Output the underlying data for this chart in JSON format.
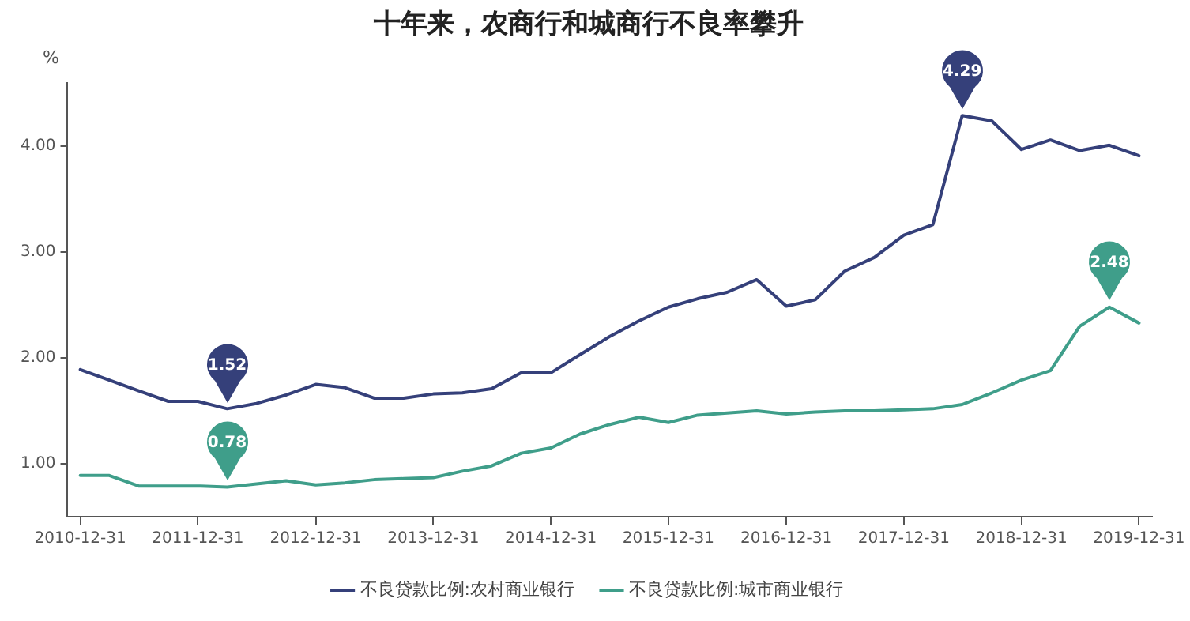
{
  "chart_data": {
    "type": "line",
    "title": "十年来，农商行和城商行不良率攀升",
    "ylabel": "%",
    "x": [
      "2010-12-31",
      "2011-03-31",
      "2011-06-30",
      "2011-09-30",
      "2011-12-31",
      "2012-03-31",
      "2012-06-30",
      "2012-09-30",
      "2012-12-31",
      "2013-03-31",
      "2013-06-30",
      "2013-09-30",
      "2013-12-31",
      "2014-03-31",
      "2014-06-30",
      "2014-09-30",
      "2014-12-31",
      "2015-03-31",
      "2015-06-30",
      "2015-09-30",
      "2015-12-31",
      "2016-03-31",
      "2016-06-30",
      "2016-09-30",
      "2016-12-31",
      "2017-03-31",
      "2017-06-30",
      "2017-09-30",
      "2017-12-31",
      "2018-03-31",
      "2018-06-30",
      "2018-09-30",
      "2018-12-31",
      "2019-03-31",
      "2019-06-30",
      "2019-09-30",
      "2019-12-31"
    ],
    "series": [
      {
        "name": "不良贷款比例:农村商业银行",
        "color": "#35407a",
        "values": [
          1.89,
          1.79,
          1.69,
          1.59,
          1.59,
          1.52,
          1.57,
          1.65,
          1.75,
          1.72,
          1.62,
          1.62,
          1.66,
          1.67,
          1.71,
          1.86,
          1.86,
          2.03,
          2.2,
          2.35,
          2.48,
          2.56,
          2.62,
          2.74,
          2.49,
          2.55,
          2.82,
          2.95,
          3.16,
          3.26,
          4.29,
          4.24,
          3.97,
          4.06,
          3.96,
          4.01,
          3.91
        ]
      },
      {
        "name": "不良贷款比例:城市商业银行",
        "color": "#3f9e8a",
        "values": [
          0.89,
          0.89,
          0.79,
          0.79,
          0.79,
          0.78,
          0.81,
          0.84,
          0.8,
          0.82,
          0.85,
          0.86,
          0.87,
          0.93,
          0.98,
          1.1,
          1.15,
          1.28,
          1.37,
          1.44,
          1.39,
          1.46,
          1.48,
          1.5,
          1.47,
          1.49,
          1.5,
          1.5,
          1.51,
          1.52,
          1.56,
          1.67,
          1.79,
          1.88,
          2.3,
          2.48,
          2.33
        ]
      }
    ],
    "xlim": [
      "2010-11-19",
      "2020-02-09"
    ],
    "xticks": [
      "2010-12-31",
      "2011-12-31",
      "2012-12-31",
      "2013-12-31",
      "2014-12-31",
      "2015-12-31",
      "2016-12-31",
      "2017-12-31",
      "2018-12-31",
      "2019-12-31"
    ],
    "ylim": [
      0.5,
      4.6
    ],
    "yticks": [
      {
        "value": 1,
        "label": "1.00"
      },
      {
        "value": 2,
        "label": "2.00"
      },
      {
        "value": 3,
        "label": "3.00"
      },
      {
        "value": 4,
        "label": "4.00"
      }
    ],
    "grid": false,
    "legend": "bottom",
    "marker": "none",
    "line_style": "solid",
    "annotations": [
      {
        "text": "1.52",
        "x": "2012-03-31",
        "y": 1.52
      },
      {
        "text": "0.78",
        "x": "2012-03-31",
        "y": 0.78
      },
      {
        "text": "4.29",
        "x": "2018-06-30",
        "y": 4.29
      },
      {
        "text": "2.48",
        "x": "2019-09-30",
        "y": 2.48
      }
    ]
  }
}
